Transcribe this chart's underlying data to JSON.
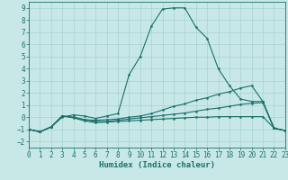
{
  "background_color": "#c8e8e8",
  "grid_color": "#a8d0d0",
  "line_color": "#1a7068",
  "xlabel": "Humidex (Indice chaleur)",
  "xlim": [
    0,
    23
  ],
  "ylim": [
    -2.5,
    9.5
  ],
  "xticks": [
    0,
    1,
    2,
    3,
    4,
    5,
    6,
    7,
    8,
    9,
    10,
    11,
    12,
    13,
    14,
    15,
    16,
    17,
    18,
    19,
    20,
    21,
    22,
    23
  ],
  "yticks": [
    -2,
    -1,
    0,
    1,
    2,
    3,
    4,
    5,
    6,
    7,
    8,
    9
  ],
  "lines": [
    {
      "x": [
        0,
        1,
        2,
        3,
        4,
        5,
        6,
        7,
        8,
        9,
        10,
        11,
        12,
        13,
        14,
        15,
        16,
        17,
        18,
        19,
        20,
        21,
        22,
        23
      ],
      "y": [
        -1.0,
        -1.2,
        -0.8,
        -0.0,
        0.2,
        0.1,
        -0.1,
        0.1,
        0.3,
        3.5,
        5.0,
        7.5,
        8.9,
        9.0,
        9.0,
        7.4,
        6.5,
        4.0,
        2.6,
        1.5,
        1.3,
        1.3,
        -0.9,
        -1.1
      ]
    },
    {
      "x": [
        0,
        1,
        2,
        3,
        4,
        5,
        6,
        7,
        8,
        9,
        10,
        11,
        12,
        13,
        14,
        15,
        16,
        17,
        18,
        19,
        20,
        21,
        22,
        23
      ],
      "y": [
        -1.0,
        -1.2,
        -0.8,
        0.1,
        0.0,
        -0.2,
        -0.25,
        -0.2,
        -0.15,
        0.0,
        0.1,
        0.3,
        0.6,
        0.9,
        1.1,
        1.4,
        1.6,
        1.9,
        2.1,
        2.4,
        2.6,
        1.3,
        -0.9,
        -1.1
      ]
    },
    {
      "x": [
        0,
        1,
        2,
        3,
        4,
        5,
        6,
        7,
        8,
        9,
        10,
        11,
        12,
        13,
        14,
        15,
        16,
        17,
        18,
        19,
        20,
        21,
        22,
        23
      ],
      "y": [
        -1.0,
        -1.2,
        -0.8,
        0.1,
        0.0,
        -0.2,
        -0.35,
        -0.35,
        -0.25,
        -0.15,
        -0.05,
        0.05,
        0.15,
        0.25,
        0.35,
        0.5,
        0.65,
        0.75,
        0.9,
        1.05,
        1.15,
        1.2,
        -0.9,
        -1.1
      ]
    },
    {
      "x": [
        0,
        1,
        2,
        3,
        4,
        5,
        6,
        7,
        8,
        9,
        10,
        11,
        12,
        13,
        14,
        15,
        16,
        17,
        18,
        19,
        20,
        21,
        22,
        23
      ],
      "y": [
        -1.0,
        -1.2,
        -0.8,
        0.1,
        -0.05,
        -0.3,
        -0.45,
        -0.4,
        -0.35,
        -0.3,
        -0.25,
        -0.2,
        -0.15,
        -0.1,
        -0.05,
        0.0,
        0.0,
        0.05,
        0.05,
        0.05,
        0.05,
        0.05,
        -0.9,
        -1.1
      ]
    }
  ],
  "tick_fontsize": 5.5,
  "xlabel_fontsize": 6.5,
  "marker_size": 1.5
}
